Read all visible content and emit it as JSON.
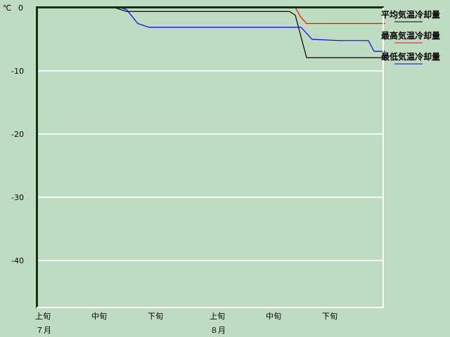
{
  "chart_data": {
    "type": "line",
    "title": "",
    "ylabel": "℃",
    "ylim": [
      -47.5,
      0
    ],
    "yticks": [
      0,
      -10,
      -20,
      -30,
      -40
    ],
    "ytick_labels": [
      "0",
      "-10",
      "-20",
      "-30",
      "-40"
    ],
    "xlim": [
      "7/1",
      "8/31"
    ],
    "xticks": [
      {
        "date": "7/1",
        "label": "上旬",
        "month_label": "７月"
      },
      {
        "date": "7/11",
        "label": "中旬",
        "month_label": ""
      },
      {
        "date": "7/21",
        "label": "下旬",
        "month_label": ""
      },
      {
        "date": "8/1",
        "label": "上旬",
        "month_label": "８月"
      },
      {
        "date": "8/11",
        "label": "中旬",
        "month_label": ""
      },
      {
        "date": "8/21",
        "label": "下旬",
        "month_label": ""
      }
    ],
    "grid": true,
    "legend_position": "right",
    "series": [
      {
        "name": "平均気温冷却量",
        "color": "#000000",
        "legend_color": "#607060",
        "points": [
          [
            "7/1",
            0
          ],
          [
            "7/15",
            0
          ],
          [
            "7/17",
            -0.6
          ],
          [
            "8/15",
            -0.6
          ],
          [
            "8/16",
            -1.2
          ],
          [
            "8/18",
            -7.9
          ],
          [
            "9/1",
            -7.9
          ]
        ]
      },
      {
        "name": "最高気温冷却量",
        "color": "#ff0000",
        "legend_color": "#e07070",
        "points": [
          [
            "7/1",
            0
          ],
          [
            "8/16",
            0
          ],
          [
            "8/17",
            -1.5
          ],
          [
            "8/18",
            -2.5
          ],
          [
            "9/1",
            -2.5
          ]
        ]
      },
      {
        "name": "最低気温冷却量",
        "color": "#0000ff",
        "legend_color": "#6070d0",
        "points": [
          [
            "7/1",
            0
          ],
          [
            "7/16",
            0
          ],
          [
            "7/17",
            -0.3
          ],
          [
            "7/19",
            -2.5
          ],
          [
            "7/21",
            -3.1
          ],
          [
            "8/17",
            -3.1
          ],
          [
            "8/19",
            -5.0
          ],
          [
            "8/24",
            -5.2
          ],
          [
            "8/29",
            -5.2
          ],
          [
            "8/30",
            -6.9
          ],
          [
            "9/1",
            -6.9
          ]
        ]
      }
    ]
  }
}
